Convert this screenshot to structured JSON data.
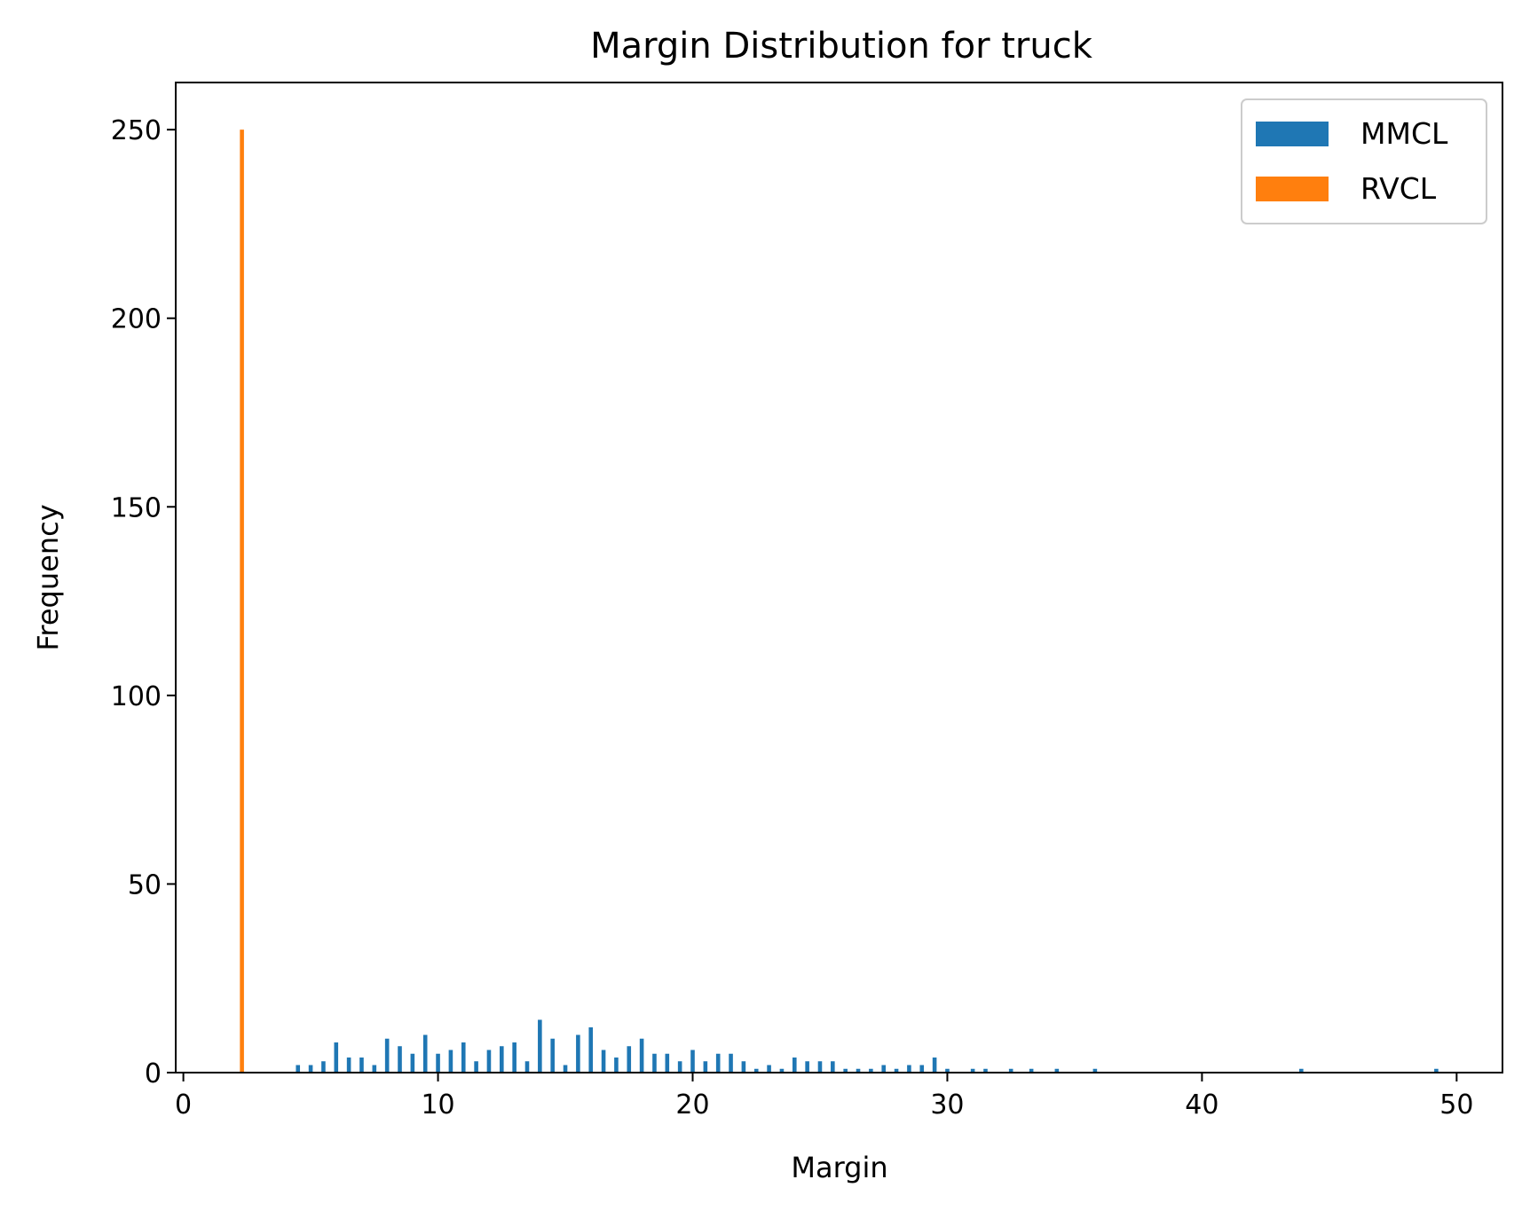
{
  "chart_data": {
    "type": "bar",
    "title": "Margin Distribution for truck",
    "xlabel": "Margin",
    "ylabel": "Frequency",
    "xlim": [
      -0.3,
      51.8
    ],
    "ylim": [
      0,
      262.5
    ],
    "xticks": [
      0,
      10,
      20,
      30,
      40,
      50
    ],
    "yticks": [
      0,
      50,
      100,
      150,
      200,
      250
    ],
    "grid": false,
    "legend_position": "top-right",
    "series": [
      {
        "name": "MMCL",
        "color": "#1f77b4",
        "bin_width": 0.16,
        "x": [
          4.5,
          5.0,
          5.5,
          6.0,
          6.5,
          7.0,
          7.5,
          8.0,
          8.5,
          9.0,
          9.5,
          10.0,
          10.5,
          11.0,
          11.5,
          12.0,
          12.5,
          13.0,
          13.5,
          14.0,
          14.5,
          15.0,
          15.5,
          16.0,
          16.5,
          17.0,
          17.5,
          18.0,
          18.5,
          19.0,
          19.5,
          20.0,
          20.5,
          21.0,
          21.5,
          22.0,
          22.5,
          23.0,
          23.5,
          24.0,
          24.5,
          25.0,
          25.5,
          26.0,
          26.5,
          27.0,
          27.5,
          28.0,
          28.5,
          29.0,
          29.5,
          30.0,
          31.0,
          31.5,
          32.5,
          33.3,
          34.3,
          35.8,
          43.9,
          49.2
        ],
        "values": [
          2,
          2,
          3,
          8,
          4,
          4,
          2,
          9,
          7,
          5,
          10,
          5,
          6,
          8,
          3,
          6,
          7,
          8,
          3,
          14,
          9,
          2,
          10,
          12,
          6,
          4,
          7,
          9,
          5,
          5,
          3,
          6,
          3,
          5,
          5,
          3,
          1,
          2,
          1,
          4,
          3,
          3,
          3,
          1,
          1,
          1,
          2,
          1,
          2,
          2,
          4,
          1,
          1,
          1,
          1,
          1,
          1,
          1,
          1,
          1
        ]
      },
      {
        "name": "RVCL",
        "color": "#ff7f0e",
        "bin_width": 0.16,
        "x": [
          2.3
        ],
        "values": [
          250
        ]
      }
    ]
  }
}
